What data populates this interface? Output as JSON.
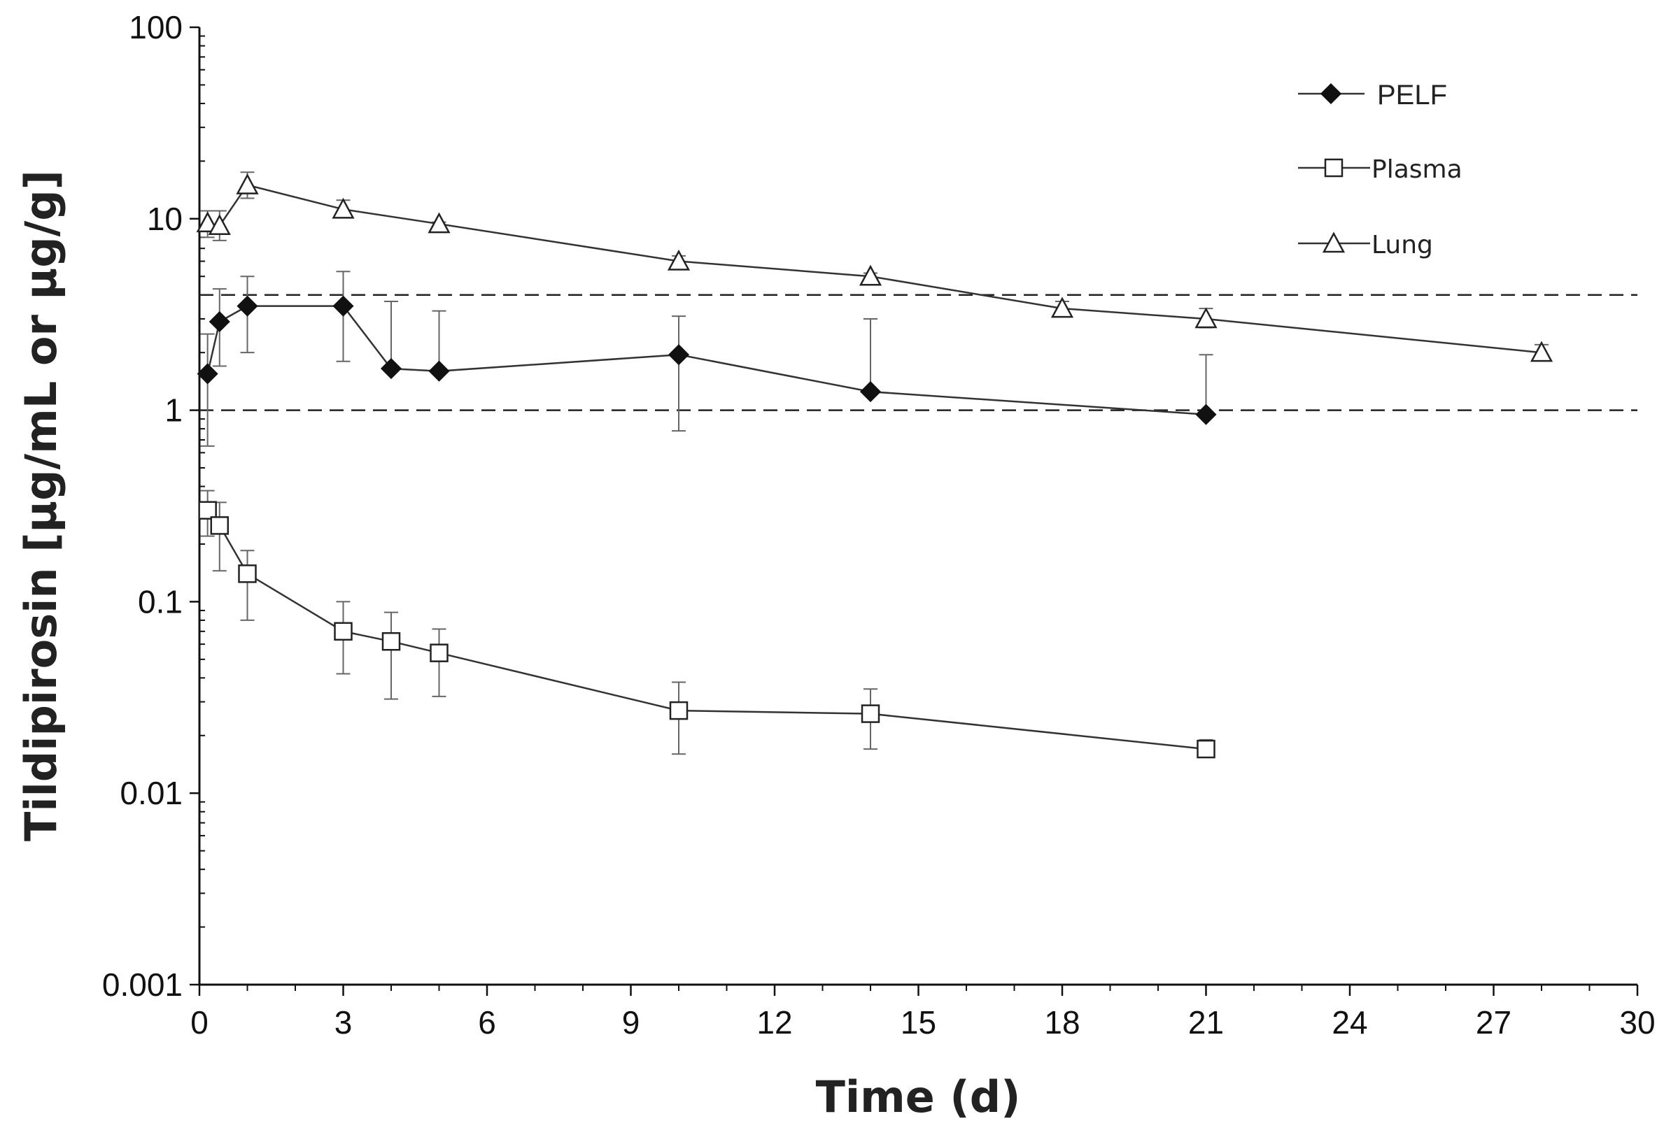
{
  "chart_data": {
    "type": "line",
    "title": "",
    "xlabel": "Time (d)",
    "ylabel": "Tildipirosin [µg/mL or µg/g]",
    "xlim": [
      0,
      30
    ],
    "ylim": [
      0.001,
      100
    ],
    "yscale": "log",
    "grid": false,
    "legend_position": "top-right",
    "x_ticks": [
      "0",
      "3",
      "6",
      "9",
      "12",
      "15",
      "18",
      "21",
      "24",
      "27",
      "30"
    ],
    "y_ticks": [
      "0.001",
      "0.01",
      "0.1",
      "1",
      "10",
      "100"
    ],
    "x_tick_values": [
      0,
      3,
      6,
      9,
      12,
      15,
      18,
      21,
      24,
      27,
      30
    ],
    "y_tick_values": [
      0.001,
      0.01,
      0.1,
      1,
      10,
      100
    ],
    "reference_lines": [
      4,
      1
    ],
    "series": [
      {
        "name": "PELF",
        "marker": "diamond-filled",
        "x": [
          0.17,
          0.42,
          1,
          3,
          4,
          5,
          10,
          14,
          21
        ],
        "values": [
          1.55,
          2.9,
          3.5,
          3.5,
          1.65,
          1.6,
          1.95,
          1.25,
          0.95
        ],
        "error_upper": [
          2.5,
          4.3,
          5.0,
          5.3,
          3.7,
          3.3,
          3.1,
          3.0,
          1.95
        ],
        "error_lower": [
          0.65,
          1.7,
          2.0,
          1.8,
          1.65,
          1.6,
          0.78,
          1.25,
          0.95
        ]
      },
      {
        "name": "Plasma",
        "marker": "square-open",
        "x": [
          0.17,
          0.42,
          1,
          3,
          4,
          5,
          10,
          14,
          21
        ],
        "values": [
          0.3,
          0.25,
          0.14,
          0.07,
          0.062,
          0.054,
          0.027,
          0.026,
          0.017
        ],
        "error_upper": [
          0.38,
          0.33,
          0.185,
          0.1,
          0.088,
          0.072,
          0.038,
          0.035,
          0.019
        ],
        "error_lower": [
          0.22,
          0.145,
          0.08,
          0.042,
          0.031,
          0.032,
          0.016,
          0.017,
          0.0155
        ]
      },
      {
        "name": "Lung",
        "marker": "triangle-open",
        "x": [
          0.17,
          0.42,
          1,
          3,
          5,
          10,
          14,
          18,
          21,
          28
        ],
        "values": [
          9.5,
          9.2,
          15.0,
          11.2,
          9.4,
          6.0,
          5.0,
          3.4,
          3.0,
          2.0
        ],
        "error_upper": [
          11.0,
          11.0,
          17.5,
          12.5,
          9.6,
          6.4,
          5.2,
          3.7,
          3.4,
          2.2
        ],
        "error_lower": [
          8.0,
          7.7,
          12.8,
          10.2,
          9.2,
          5.7,
          4.8,
          3.2,
          2.7,
          1.85
        ]
      }
    ]
  }
}
